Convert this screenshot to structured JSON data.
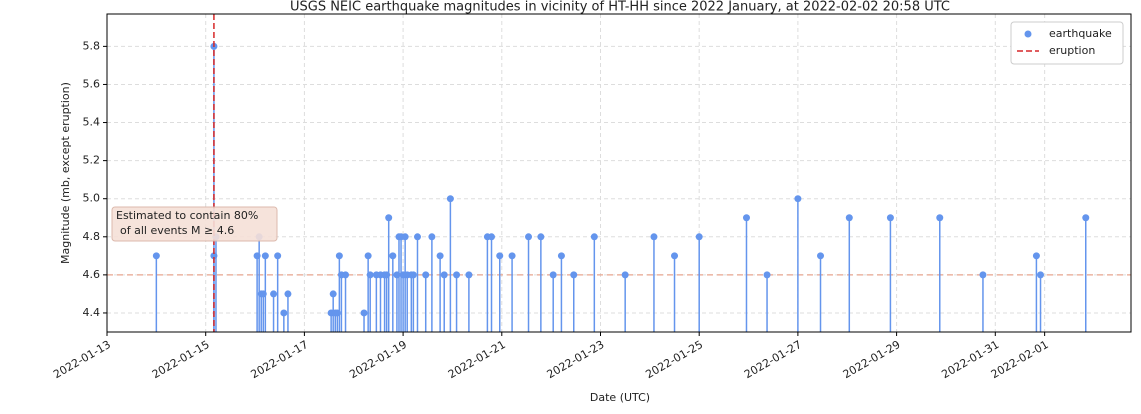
{
  "chart_data": {
    "type": "stem",
    "title": "USGS NEIC earthquake magnitudes in vicinity of HT-HH since 2022 January, at 2022-02-02 20:58 UTC",
    "xlabel": "Date (UTC)",
    "ylabel": "Magnitude (mb, except eruption)",
    "x": [
      "2022-01-14T00:00",
      "2022-01-15T04:00",
      "2022-01-15T04:00",
      "2022-01-15T05:00",
      "2022-01-16T01:00",
      "2022-01-16T02:00",
      "2022-01-16T03:00",
      "2022-01-16T04:00",
      "2022-01-16T05:00",
      "2022-01-16T09:00",
      "2022-01-16T11:00",
      "2022-01-16T14:00",
      "2022-01-16T16:00",
      "2022-01-17T13:00",
      "2022-01-17T14:00",
      "2022-01-17T15:00",
      "2022-01-17T16:00",
      "2022-01-17T17:00",
      "2022-01-17T18:00",
      "2022-01-17T20:00",
      "2022-01-18T05:00",
      "2022-01-18T07:00",
      "2022-01-18T08:00",
      "2022-01-18T11:00",
      "2022-01-18T13:00",
      "2022-01-18T15:00",
      "2022-01-18T16:00",
      "2022-01-18T17:00",
      "2022-01-18T19:00",
      "2022-01-18T21:00",
      "2022-01-18T22:00",
      "2022-01-18T23:00",
      "2022-01-19T00:00",
      "2022-01-19T01:00",
      "2022-01-19T02:00",
      "2022-01-19T04:00",
      "2022-01-19T05:00",
      "2022-01-19T07:00",
      "2022-01-19T11:00",
      "2022-01-19T14:00",
      "2022-01-19T18:00",
      "2022-01-19T20:00",
      "2022-01-19T23:00",
      "2022-01-20T02:00",
      "2022-01-20T08:00",
      "2022-01-20T17:00",
      "2022-01-20T19:00",
      "2022-01-20T23:00",
      "2022-01-21T05:00",
      "2022-01-21T13:00",
      "2022-01-21T19:00",
      "2022-01-22T01:00",
      "2022-01-22T05:00",
      "2022-01-22T11:00",
      "2022-01-22T21:00",
      "2022-01-23T12:00",
      "2022-01-24T02:00",
      "2022-01-24T12:00",
      "2022-01-25T00:00",
      "2022-01-25T23:00",
      "2022-01-26T09:00",
      "2022-01-27T00:00",
      "2022-01-27T11:00",
      "2022-01-28T01:00",
      "2022-01-28T21:00",
      "2022-01-29T21:00",
      "2022-01-30T18:00",
      "2022-01-31T20:00",
      "2022-01-31T22:00",
      "2022-02-01T20:00"
    ],
    "series": [
      {
        "name": "earthquake",
        "color": "#6495ed",
        "values": [
          4.7,
          5.8,
          4.7,
          4.8,
          4.7,
          4.8,
          4.5,
          4.5,
          4.7,
          4.5,
          4.7,
          4.4,
          4.5,
          4.4,
          4.5,
          4.4,
          4.4,
          4.7,
          4.6,
          4.6,
          4.4,
          4.7,
          4.6,
          4.6,
          4.6,
          4.6,
          4.6,
          4.9,
          4.7,
          4.6,
          4.8,
          4.8,
          4.6,
          4.8,
          4.6,
          4.6,
          4.6,
          4.8,
          4.6,
          4.8,
          4.7,
          4.6,
          5.0,
          4.6,
          4.6,
          4.8,
          4.8,
          4.7,
          4.7,
          4.8,
          4.8,
          4.6,
          4.7,
          4.6,
          4.8,
          4.6,
          4.8,
          4.7,
          4.8,
          4.9,
          4.6,
          5.0,
          4.7,
          4.9,
          4.9,
          4.9,
          4.6,
          4.7,
          4.6,
          4.9
        ]
      }
    ],
    "eruption": {
      "name": "eruption",
      "x": "2022-01-15T04:00",
      "color": "#d62728"
    },
    "threshold": {
      "value": 4.6,
      "color": "#e9a68f"
    },
    "annotation": [
      "Estimated to contain 80%",
      "of all events M ≥ 4.6"
    ],
    "xlim": [
      "2022-01-13T00:00",
      "2022-02-02T18:00"
    ],
    "ylim": [
      4.3,
      5.97
    ],
    "xticks": [
      "2022-01-13",
      "2022-01-15",
      "2022-01-17",
      "2022-01-19",
      "2022-01-21",
      "2022-01-23",
      "2022-01-25",
      "2022-01-27",
      "2022-01-29",
      "2022-01-31",
      "2022-02-01"
    ],
    "yticks": [
      4.4,
      4.6,
      4.8,
      {
        "value": 5,
        "label": "5.0"
      },
      5.2,
      5.4,
      5.6,
      5.8
    ],
    "grid": true,
    "legend": "upper right"
  }
}
